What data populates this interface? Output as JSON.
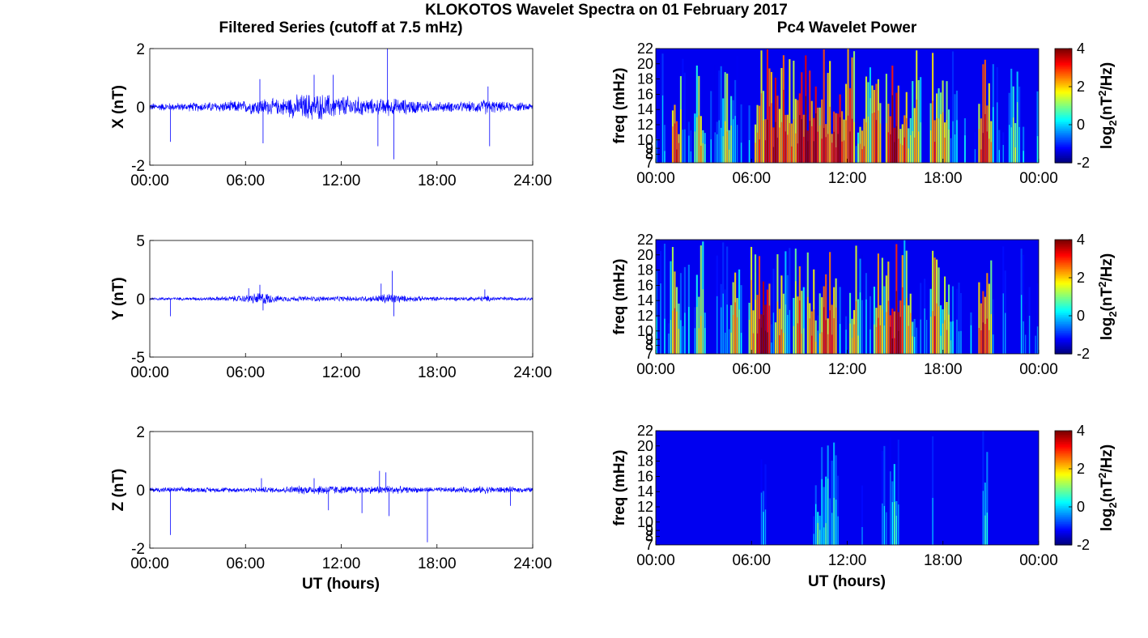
{
  "title": "KLOKOTOS Wavelet Spectra on 01 February 2017",
  "left_column_title": "Filtered Series (cutoff at 7.5 mHz)",
  "right_column_title": "Pc4 Wavelet Power",
  "x_axis_label": "UT (hours)",
  "colors": {
    "trace": "#0000ff",
    "axes": "#000000",
    "background": "#ffffff"
  },
  "chart_data": [
    {
      "type": "line",
      "id": "x-series",
      "ylabel": "X (nT)",
      "ylim": [
        -2,
        2
      ],
      "yticks": [
        "2",
        "0",
        "-2"
      ],
      "xlim": [
        0,
        24
      ],
      "xticks": [
        "00:00",
        "06:00",
        "12:00",
        "18:00",
        "24:00"
      ],
      "noise_envelope": {
        "x": [
          0,
          2,
          4,
          6,
          7,
          8,
          9,
          10,
          11,
          12,
          13,
          14,
          15,
          16,
          17,
          18,
          19,
          20,
          21,
          22,
          24
        ],
        "amplitude": [
          0.15,
          0.16,
          0.2,
          0.25,
          0.35,
          0.3,
          0.45,
          0.55,
          0.5,
          0.45,
          0.4,
          0.3,
          0.35,
          0.3,
          0.25,
          0.2,
          0.2,
          0.2,
          0.3,
          0.2,
          0.15
        ]
      },
      "spikes": [
        {
          "x": 1.3,
          "y": -1.2
        },
        {
          "x": 6.9,
          "y": 0.95
        },
        {
          "x": 7.1,
          "y": -1.25
        },
        {
          "x": 10.3,
          "y": 1.1
        },
        {
          "x": 11.5,
          "y": 1.1
        },
        {
          "x": 14.3,
          "y": -1.35
        },
        {
          "x": 14.9,
          "y": 2.0
        },
        {
          "x": 15.3,
          "y": -1.8
        },
        {
          "x": 21.2,
          "y": 0.7
        },
        {
          "x": 21.3,
          "y": -1.35
        }
      ]
    },
    {
      "type": "line",
      "id": "y-series",
      "ylabel": "Y (nT)",
      "ylim": [
        -5,
        5
      ],
      "yticks": [
        "5",
        "0",
        "-5"
      ],
      "xlim": [
        0,
        24
      ],
      "xticks": [
        "00:00",
        "06:00",
        "12:00",
        "18:00",
        "24:00"
      ],
      "noise_envelope": {
        "x": [
          0,
          2,
          4,
          6,
          7,
          8,
          10,
          12,
          14,
          15,
          16,
          18,
          20,
          21,
          22,
          24
        ],
        "amplitude": [
          0.15,
          0.15,
          0.2,
          0.35,
          0.7,
          0.3,
          0.25,
          0.25,
          0.3,
          0.6,
          0.3,
          0.2,
          0.2,
          0.3,
          0.2,
          0.15
        ]
      },
      "spikes": [
        {
          "x": 1.3,
          "y": -1.5
        },
        {
          "x": 6.9,
          "y": 1.2
        },
        {
          "x": 7.1,
          "y": -1.0
        },
        {
          "x": 14.5,
          "y": 1.3
        },
        {
          "x": 15.2,
          "y": 2.4
        },
        {
          "x": 15.3,
          "y": -1.5
        },
        {
          "x": 21.0,
          "y": 0.8
        },
        {
          "x": 6.2,
          "y": 0.9
        }
      ]
    },
    {
      "type": "line",
      "id": "z-series",
      "ylabel": "Z (nT)",
      "ylim": [
        -2,
        2
      ],
      "yticks": [
        "2",
        "0",
        "-2"
      ],
      "xlim": [
        0,
        24
      ],
      "xticks": [
        "00:00",
        "06:00",
        "12:00",
        "18:00",
        "24:00"
      ],
      "noise_envelope": {
        "x": [
          0,
          2,
          4,
          6,
          8,
          10,
          11,
          12,
          14,
          15,
          16,
          18,
          20,
          21,
          22,
          24
        ],
        "amplitude": [
          0.1,
          0.1,
          0.1,
          0.1,
          0.12,
          0.18,
          0.2,
          0.15,
          0.15,
          0.18,
          0.12,
          0.1,
          0.12,
          0.15,
          0.12,
          0.1
        ]
      },
      "spikes": [
        {
          "x": 1.3,
          "y": -1.55
        },
        {
          "x": 7.0,
          "y": 0.4
        },
        {
          "x": 10.3,
          "y": 0.4
        },
        {
          "x": 11.2,
          "y": -0.7
        },
        {
          "x": 13.3,
          "y": -0.8
        },
        {
          "x": 14.4,
          "y": 0.65
        },
        {
          "x": 14.8,
          "y": 0.6
        },
        {
          "x": 15.0,
          "y": -0.9
        },
        {
          "x": 17.4,
          "y": -1.8
        },
        {
          "x": 22.6,
          "y": -0.55
        }
      ]
    },
    {
      "type": "heatmap",
      "id": "x-wavelet",
      "ylabel": "freq (mHz)",
      "ylim": [
        7,
        22
      ],
      "yticks": [
        "22",
        "20",
        "18",
        "16",
        "14",
        "12",
        "10",
        "9",
        "8",
        "7"
      ],
      "xlim": [
        0,
        24
      ],
      "xticks": [
        "00:00",
        "06:00",
        "12:00",
        "18:00",
        "00:00"
      ],
      "colorbar_label": "log2(nT2/Hz)",
      "clim": [
        -2,
        4
      ],
      "colorbar_ticks": [
        "4",
        "2",
        "0",
        "-2"
      ],
      "colormap": "jet",
      "base_level": -2,
      "noise_level": 1.8,
      "level": 1.0,
      "bursts": [
        {
          "t": 1.3,
          "v": 3.0
        },
        {
          "t": 2.8,
          "v": 2.0
        },
        {
          "t": 4.5,
          "v": 1.5
        },
        {
          "t": 6.5,
          "v": 2.5
        },
        {
          "t": 7.0,
          "v": 3.2
        },
        {
          "t": 7.5,
          "v": 3.5
        },
        {
          "t": 8.1,
          "v": 3.0
        },
        {
          "t": 8.5,
          "v": 2.5
        },
        {
          "t": 9.1,
          "v": 3.5
        },
        {
          "t": 9.5,
          "v": 4.0
        },
        {
          "t": 10.0,
          "v": 3.5
        },
        {
          "t": 10.6,
          "v": 3.2
        },
        {
          "t": 11.2,
          "v": 3.0
        },
        {
          "t": 11.5,
          "v": 3.6
        },
        {
          "t": 12.2,
          "v": 3.0
        },
        {
          "t": 13.0,
          "v": 2.5
        },
        {
          "t": 13.8,
          "v": 2.8
        },
        {
          "t": 14.7,
          "v": 3.0
        },
        {
          "t": 15.0,
          "v": 3.8
        },
        {
          "t": 15.6,
          "v": 2.5
        },
        {
          "t": 16.3,
          "v": 2.0
        },
        {
          "t": 17.5,
          "v": 2.5
        },
        {
          "t": 18.1,
          "v": 2.0
        },
        {
          "t": 20.5,
          "v": 3.0
        },
        {
          "t": 20.7,
          "v": 3.0
        },
        {
          "t": 22.5,
          "v": 1.0
        }
      ]
    },
    {
      "type": "heatmap",
      "id": "y-wavelet",
      "ylabel": "freq (mHz)",
      "ylim": [
        7,
        22
      ],
      "yticks": [
        "22",
        "20",
        "18",
        "16",
        "14",
        "12",
        "10",
        "9",
        "8",
        "7"
      ],
      "xlim": [
        0,
        24
      ],
      "xticks": [
        "00:00",
        "06:00",
        "12:00",
        "18:00",
        "00:00"
      ],
      "colorbar_label": "log2(nT2/Hz)",
      "clim": [
        -2,
        4
      ],
      "colorbar_ticks": [
        "4",
        "2",
        "0",
        "-2"
      ],
      "colormap": "jet",
      "base_level": -2,
      "noise_level": 1.7,
      "level": 0.8,
      "bursts": [
        {
          "t": 1.2,
          "v": 2.0
        },
        {
          "t": 2.8,
          "v": 1.5
        },
        {
          "t": 5.0,
          "v": 2.0
        },
        {
          "t": 6.1,
          "v": 2.0
        },
        {
          "t": 6.7,
          "v": 4.0
        },
        {
          "t": 6.9,
          "v": 3.8
        },
        {
          "t": 7.8,
          "v": 2.5
        },
        {
          "t": 9.0,
          "v": 2.5
        },
        {
          "t": 9.8,
          "v": 2.5
        },
        {
          "t": 10.6,
          "v": 3.0
        },
        {
          "t": 11.0,
          "v": 2.8
        },
        {
          "t": 12.5,
          "v": 2.0
        },
        {
          "t": 14.0,
          "v": 2.5
        },
        {
          "t": 14.8,
          "v": 3.5
        },
        {
          "t": 15.2,
          "v": 3.8
        },
        {
          "t": 15.9,
          "v": 2.0
        },
        {
          "t": 17.5,
          "v": 2.5
        },
        {
          "t": 18.2,
          "v": 2.0
        },
        {
          "t": 20.5,
          "v": 3.0
        },
        {
          "t": 20.8,
          "v": 2.5
        }
      ]
    },
    {
      "type": "heatmap",
      "id": "z-wavelet",
      "ylabel": "freq (mHz)",
      "ylim": [
        7,
        22
      ],
      "yticks": [
        "22",
        "20",
        "18",
        "16",
        "14",
        "12",
        "10",
        "9",
        "8",
        "7"
      ],
      "xlim": [
        0,
        24
      ],
      "xticks": [
        "00:00",
        "06:00",
        "12:00",
        "18:00",
        "00:00"
      ],
      "colorbar_label": "log2(nT2/Hz)",
      "clim": [
        -2,
        4
      ],
      "colorbar_ticks": [
        "4",
        "2",
        "0",
        "-2"
      ],
      "colormap": "jet",
      "base_level": -2,
      "noise_level": 0.05,
      "level": 0.0,
      "bursts": [
        {
          "t": 6.8,
          "v": -0.5
        },
        {
          "t": 10.2,
          "v": 0.5
        },
        {
          "t": 10.7,
          "v": 0.2
        },
        {
          "t": 11.2,
          "v": 0.0
        },
        {
          "t": 13.0,
          "v": -1.0
        },
        {
          "t": 14.3,
          "v": -0.5
        },
        {
          "t": 15.0,
          "v": 0.2
        },
        {
          "t": 17.4,
          "v": -0.8
        },
        {
          "t": 20.7,
          "v": 0.0
        }
      ]
    }
  ]
}
